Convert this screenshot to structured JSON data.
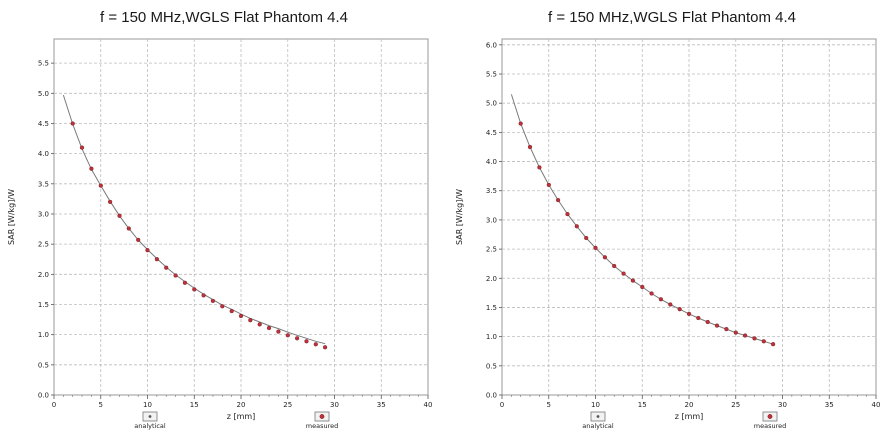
{
  "chart_data": [
    {
      "type": "line",
      "title": "f = 150 MHz,WGLS Flat Phantom 4.4",
      "xlabel": "z [mm]",
      "ylabel": "SAR [W/kg]/W",
      "xlim": [
        0,
        40
      ],
      "ylim": [
        0,
        5.9
      ],
      "xticks": [
        "0",
        "5",
        "10",
        "15",
        "20",
        "25",
        "30",
        "35",
        "40"
      ],
      "yticks": [
        "0.0",
        "0.5",
        "1.0",
        "1.5",
        "2.0",
        "2.5",
        "3.0",
        "3.5",
        "4.0",
        "4.5",
        "5.0",
        "5.5"
      ],
      "ytick_values": [
        0.0,
        0.5,
        1.0,
        1.5,
        2.0,
        2.5,
        3.0,
        3.5,
        4.0,
        4.5,
        5.0,
        5.5
      ],
      "grid": true,
      "legend": "bottom",
      "series": [
        {
          "name": "analytical",
          "style": "line",
          "color": "#7a7a7a",
          "x": [
            1,
            2,
            3,
            4,
            5,
            6,
            7,
            8,
            9,
            10,
            11,
            12,
            13,
            14,
            15,
            16,
            17,
            18,
            19,
            20,
            21,
            22,
            23,
            24,
            25,
            26,
            27,
            28,
            29
          ],
          "y": [
            4.97,
            4.49,
            4.08,
            3.74,
            3.47,
            3.21,
            2.97,
            2.76,
            2.57,
            2.41,
            2.26,
            2.12,
            1.99,
            1.88,
            1.77,
            1.67,
            1.58,
            1.49,
            1.42,
            1.34,
            1.27,
            1.21,
            1.15,
            1.1,
            1.04,
            0.99,
            0.94,
            0.89,
            0.85
          ]
        },
        {
          "name": "measured",
          "style": "markers",
          "color": "#c0303a",
          "x": [
            2,
            3,
            4,
            5,
            6,
            7,
            8,
            9,
            10,
            11,
            12,
            13,
            14,
            15,
            16,
            17,
            18,
            19,
            20,
            21,
            22,
            23,
            24,
            25,
            26,
            27,
            28,
            29
          ],
          "y": [
            4.5,
            4.1,
            3.75,
            3.47,
            3.2,
            2.97,
            2.76,
            2.57,
            2.4,
            2.25,
            2.11,
            1.98,
            1.86,
            1.75,
            1.65,
            1.56,
            1.47,
            1.39,
            1.31,
            1.24,
            1.17,
            1.11,
            1.05,
            0.99,
            0.94,
            0.89,
            0.84,
            0.79
          ]
        }
      ]
    },
    {
      "type": "line",
      "title": "f = 150 MHz,WGLS Flat Phantom 4.4",
      "xlabel": "z [mm]",
      "ylabel": "SAR [W/kg]/W",
      "xlim": [
        0,
        40
      ],
      "ylim": [
        0,
        6.1
      ],
      "xticks": [
        "0",
        "5",
        "10",
        "15",
        "20",
        "25",
        "30",
        "35",
        "40"
      ],
      "yticks": [
        "0.0",
        "0.5",
        "1.0",
        "1.5",
        "2.0",
        "2.5",
        "3.0",
        "3.5",
        "4.0",
        "4.5",
        "5.0",
        "5.5",
        "6.0"
      ],
      "ytick_values": [
        0.0,
        0.5,
        1.0,
        1.5,
        2.0,
        2.5,
        3.0,
        3.5,
        4.0,
        4.5,
        5.0,
        5.5,
        6.0
      ],
      "grid": true,
      "legend": "bottom",
      "series": [
        {
          "name": "analytical",
          "style": "line",
          "color": "#7a7a7a",
          "x": [
            1,
            2,
            3,
            4,
            5,
            6,
            7,
            8,
            9,
            10,
            11,
            12,
            13,
            14,
            15,
            16,
            17,
            18,
            19,
            20,
            21,
            22,
            23,
            24,
            25,
            26,
            27,
            28,
            29
          ],
          "y": [
            5.15,
            4.65,
            4.25,
            3.9,
            3.6,
            3.34,
            3.1,
            2.89,
            2.69,
            2.52,
            2.36,
            2.21,
            2.08,
            1.96,
            1.85,
            1.74,
            1.64,
            1.55,
            1.47,
            1.39,
            1.32,
            1.25,
            1.19,
            1.13,
            1.07,
            1.02,
            0.97,
            0.92,
            0.87
          ]
        },
        {
          "name": "measured",
          "style": "markers",
          "color": "#c0303a",
          "x": [
            2,
            3,
            4,
            5,
            6,
            7,
            8,
            9,
            10,
            11,
            12,
            13,
            14,
            15,
            16,
            17,
            18,
            19,
            20,
            21,
            22,
            23,
            24,
            25,
            26,
            27,
            28,
            29
          ],
          "y": [
            4.65,
            4.25,
            3.9,
            3.6,
            3.34,
            3.1,
            2.89,
            2.69,
            2.52,
            2.36,
            2.21,
            2.08,
            1.96,
            1.85,
            1.74,
            1.64,
            1.55,
            1.47,
            1.39,
            1.32,
            1.25,
            1.19,
            1.13,
            1.07,
            1.02,
            0.97,
            0.92,
            0.87
          ]
        }
      ]
    }
  ]
}
